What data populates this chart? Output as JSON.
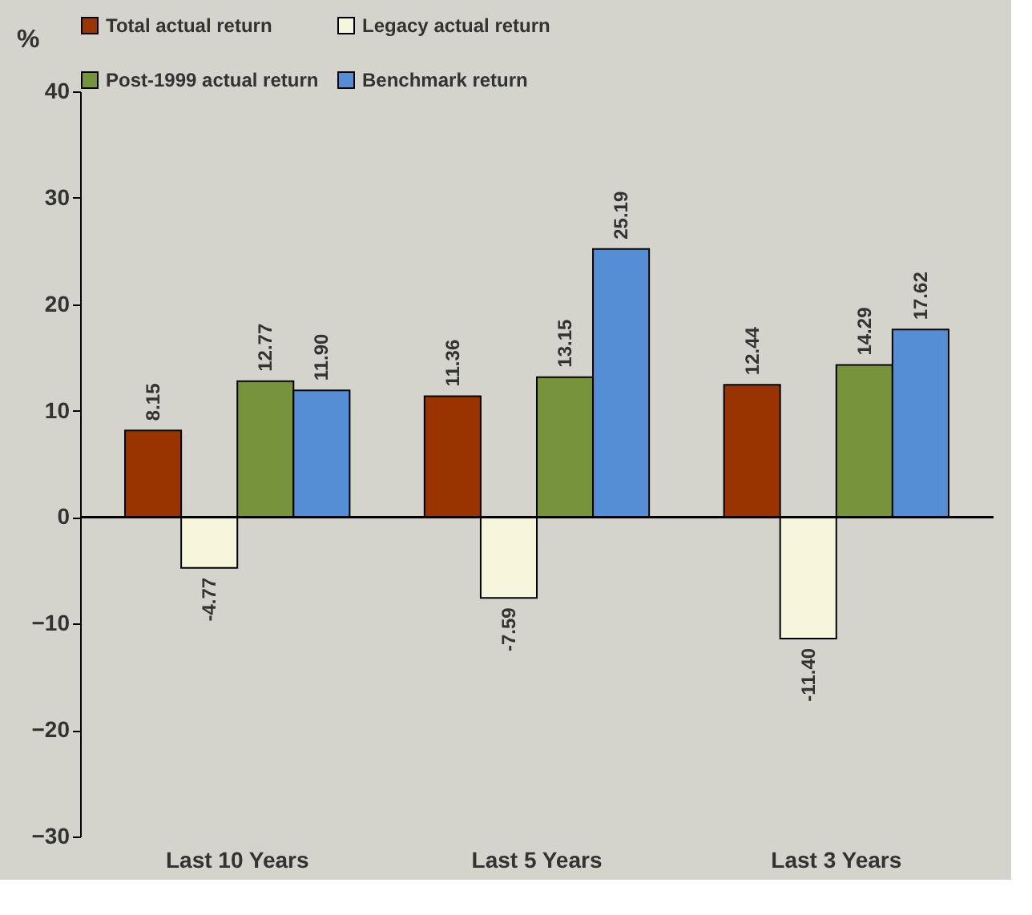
{
  "chart_data": {
    "type": "bar",
    "ylabel": "%",
    "categories": [
      "Last 10 Years",
      "Last 5 Years",
      "Last 3 Years"
    ],
    "series": [
      {
        "name": "Total actual return",
        "color": "#993300",
        "values": [
          8.15,
          11.36,
          12.44
        ]
      },
      {
        "name": "Legacy actual return",
        "color": "#f7f6dc",
        "values": [
          -4.77,
          -7.59,
          -11.4
        ]
      },
      {
        "name": "Post-1999 actual return",
        "color": "#77933c",
        "values": [
          12.77,
          13.15,
          14.29
        ]
      },
      {
        "name": "Benchmark return",
        "color": "#558ed5",
        "values": [
          11.9,
          25.19,
          17.62
        ]
      }
    ],
    "value_labels": [
      [
        "8.15",
        "11.36",
        "12.44"
      ],
      [
        "-4.77",
        "-7.59",
        "-11.40"
      ],
      [
        "12.77",
        "13.15",
        "14.29"
      ],
      [
        "11.90",
        "25.19",
        "17.62"
      ]
    ],
    "ref_lines": [
      {
        "axis": "y",
        "value": 0,
        "color": "#000000"
      }
    ],
    "ylim": [
      -30,
      40
    ],
    "yticks": [
      -30,
      -20,
      -10,
      0,
      10,
      20,
      30,
      40
    ],
    "grid": false,
    "legend": "top"
  }
}
